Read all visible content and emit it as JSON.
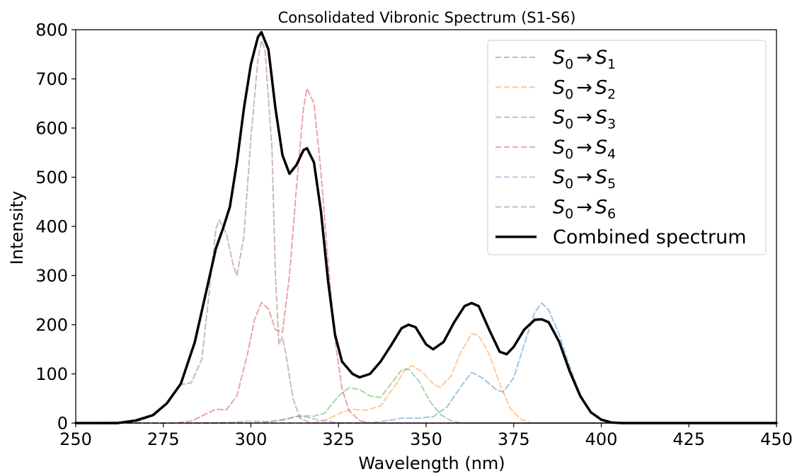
{
  "chart_data": {
    "type": "line",
    "title": "Consolidated Vibronic Spectrum (S1-S6)",
    "xlabel": "Wavelength (nm)",
    "ylabel": "Intensity",
    "xlim": [
      250,
      450
    ],
    "ylim": [
      0,
      800
    ],
    "xticks": [
      250,
      275,
      300,
      325,
      350,
      375,
      400,
      425,
      450
    ],
    "yticks": [
      0,
      100,
      200,
      300,
      400,
      500,
      600,
      700,
      800
    ],
    "grid": false,
    "legend_position": "upper right",
    "series": [
      {
        "name": "S0 → S1",
        "legend_base": "S",
        "legend_from": "0",
        "legend_arrow": "→",
        "legend_to": "1",
        "style": "dashed",
        "color": "#1f77b4",
        "points": [
          [
            250,
            0
          ],
          [
            325,
            0
          ],
          [
            335,
            1
          ],
          [
            340,
            6
          ],
          [
            343,
            10
          ],
          [
            348,
            10
          ],
          [
            352,
            13
          ],
          [
            356,
            33
          ],
          [
            360,
            75
          ],
          [
            363,
            103
          ],
          [
            366,
            92
          ],
          [
            370,
            68
          ],
          [
            372,
            63
          ],
          [
            375,
            92
          ],
          [
            378,
            160
          ],
          [
            381,
            225
          ],
          [
            383,
            244
          ],
          [
            385,
            230
          ],
          [
            388,
            180
          ],
          [
            391,
            115
          ],
          [
            394,
            58
          ],
          [
            397,
            22
          ],
          [
            400,
            5
          ],
          [
            403,
            0
          ],
          [
            450,
            0
          ]
        ]
      },
      {
        "name": "S0 → S2",
        "legend_base": "S",
        "legend_from": "0",
        "legend_arrow": "→",
        "legend_to": "2",
        "style": "dashed",
        "color": "#ff7f0e",
        "points": [
          [
            250,
            0
          ],
          [
            318,
            0
          ],
          [
            322,
            8
          ],
          [
            326,
            22
          ],
          [
            329,
            28
          ],
          [
            333,
            26
          ],
          [
            337,
            35
          ],
          [
            341,
            75
          ],
          [
            344,
            108
          ],
          [
            346,
            117
          ],
          [
            349,
            103
          ],
          [
            352,
            80
          ],
          [
            354,
            72
          ],
          [
            357,
            95
          ],
          [
            360,
            145
          ],
          [
            363,
            182
          ],
          [
            365,
            178
          ],
          [
            368,
            140
          ],
          [
            371,
            80
          ],
          [
            374,
            30
          ],
          [
            377,
            8
          ],
          [
            380,
            0
          ],
          [
            450,
            0
          ]
        ]
      },
      {
        "name": "S0 → S3",
        "legend_base": "S",
        "legend_from": "0",
        "legend_arrow": "→",
        "legend_to": "3",
        "style": "dashed",
        "color": "#2ca02c",
        "points": [
          [
            250,
            0
          ],
          [
            300,
            0
          ],
          [
            305,
            2
          ],
          [
            310,
            8
          ],
          [
            314,
            15
          ],
          [
            318,
            14
          ],
          [
            321,
            20
          ],
          [
            325,
            55
          ],
          [
            328,
            72
          ],
          [
            331,
            68
          ],
          [
            334,
            55
          ],
          [
            337,
            52
          ],
          [
            340,
            80
          ],
          [
            343,
            108
          ],
          [
            345,
            110
          ],
          [
            348,
            85
          ],
          [
            351,
            45
          ],
          [
            354,
            18
          ],
          [
            357,
            5
          ],
          [
            360,
            0
          ],
          [
            450,
            0
          ]
        ]
      },
      {
        "name": "S0 → S4",
        "legend_base": "S",
        "legend_from": "0",
        "legend_arrow": "→",
        "legend_to": "4",
        "style": "dashed",
        "color": "#d62728",
        "points": [
          [
            250,
            0
          ],
          [
            278,
            0
          ],
          [
            283,
            4
          ],
          [
            287,
            18
          ],
          [
            290,
            28
          ],
          [
            293,
            27
          ],
          [
            296,
            55
          ],
          [
            299,
            140
          ],
          [
            301,
            210
          ],
          [
            303,
            245
          ],
          [
            305,
            232
          ],
          [
            307,
            190
          ],
          [
            309,
            185
          ],
          [
            311,
            300
          ],
          [
            313,
            480
          ],
          [
            315,
            640
          ],
          [
            316,
            680
          ],
          [
            318,
            650
          ],
          [
            320,
            510
          ],
          [
            322,
            330
          ],
          [
            324,
            170
          ],
          [
            326,
            70
          ],
          [
            328,
            25
          ],
          [
            331,
            5
          ],
          [
            334,
            0
          ],
          [
            450,
            0
          ]
        ]
      },
      {
        "name": "S0 → S5",
        "legend_base": "S",
        "legend_from": "0",
        "legend_arrow": "→",
        "legend_to": "5",
        "style": "dashed",
        "color": "#9467bd",
        "points": [
          [
            250,
            0
          ],
          [
            285,
            0
          ],
          [
            295,
            2
          ],
          [
            300,
            4
          ],
          [
            305,
            3
          ],
          [
            309,
            6
          ],
          [
            313,
            14
          ],
          [
            316,
            12
          ],
          [
            320,
            5
          ],
          [
            325,
            1
          ],
          [
            330,
            0
          ],
          [
            450,
            0
          ]
        ]
      },
      {
        "name": "S0 → S6",
        "legend_base": "S",
        "legend_from": "0",
        "legend_arrow": "→",
        "legend_to": "6",
        "style": "dashed",
        "color": "#8c564b",
        "points": [
          [
            250,
            0
          ],
          [
            268,
            3
          ],
          [
            273,
            18
          ],
          [
            277,
            50
          ],
          [
            280,
            78
          ],
          [
            283,
            82
          ],
          [
            286,
            130
          ],
          [
            288,
            260
          ],
          [
            290,
            395
          ],
          [
            291,
            413
          ],
          [
            293,
            385
          ],
          [
            295,
            320
          ],
          [
            296,
            300
          ],
          [
            298,
            380
          ],
          [
            300,
            580
          ],
          [
            302,
            740
          ],
          [
            303,
            778
          ],
          [
            304,
            760
          ],
          [
            306,
            560
          ],
          [
            307,
            300
          ],
          [
            308,
            160
          ],
          [
            309,
            175
          ],
          [
            310,
            140
          ],
          [
            312,
            50
          ],
          [
            314,
            10
          ],
          [
            317,
            0
          ],
          [
            450,
            0
          ]
        ]
      },
      {
        "name": "Combined spectrum",
        "style": "solid",
        "color": "#000000",
        "points": [
          [
            250,
            0
          ],
          [
            262,
            0
          ],
          [
            267,
            5
          ],
          [
            272,
            16
          ],
          [
            276,
            40
          ],
          [
            280,
            80
          ],
          [
            284,
            165
          ],
          [
            287,
            260
          ],
          [
            290,
            355
          ],
          [
            292,
            395
          ],
          [
            294,
            440
          ],
          [
            296,
            530
          ],
          [
            298,
            640
          ],
          [
            300,
            730
          ],
          [
            302,
            785
          ],
          [
            303,
            795
          ],
          [
            305,
            760
          ],
          [
            307,
            640
          ],
          [
            309,
            545
          ],
          [
            311,
            507
          ],
          [
            313,
            525
          ],
          [
            315,
            555
          ],
          [
            316,
            559
          ],
          [
            318,
            530
          ],
          [
            320,
            430
          ],
          [
            322,
            290
          ],
          [
            324,
            180
          ],
          [
            326,
            125
          ],
          [
            329,
            100
          ],
          [
            331,
            93
          ],
          [
            334,
            100
          ],
          [
            337,
            125
          ],
          [
            340,
            158
          ],
          [
            343,
            193
          ],
          [
            345,
            200
          ],
          [
            347,
            195
          ],
          [
            350,
            160
          ],
          [
            352,
            150
          ],
          [
            355,
            165
          ],
          [
            358,
            205
          ],
          [
            361,
            238
          ],
          [
            363,
            244
          ],
          [
            365,
            238
          ],
          [
            368,
            190
          ],
          [
            371,
            145
          ],
          [
            373,
            140
          ],
          [
            375,
            155
          ],
          [
            378,
            190
          ],
          [
            381,
            210
          ],
          [
            383,
            211
          ],
          [
            385,
            205
          ],
          [
            388,
            165
          ],
          [
            391,
            105
          ],
          [
            394,
            55
          ],
          [
            397,
            22
          ],
          [
            400,
            7
          ],
          [
            403,
            1
          ],
          [
            406,
            0
          ],
          [
            450,
            0
          ]
        ]
      }
    ]
  }
}
